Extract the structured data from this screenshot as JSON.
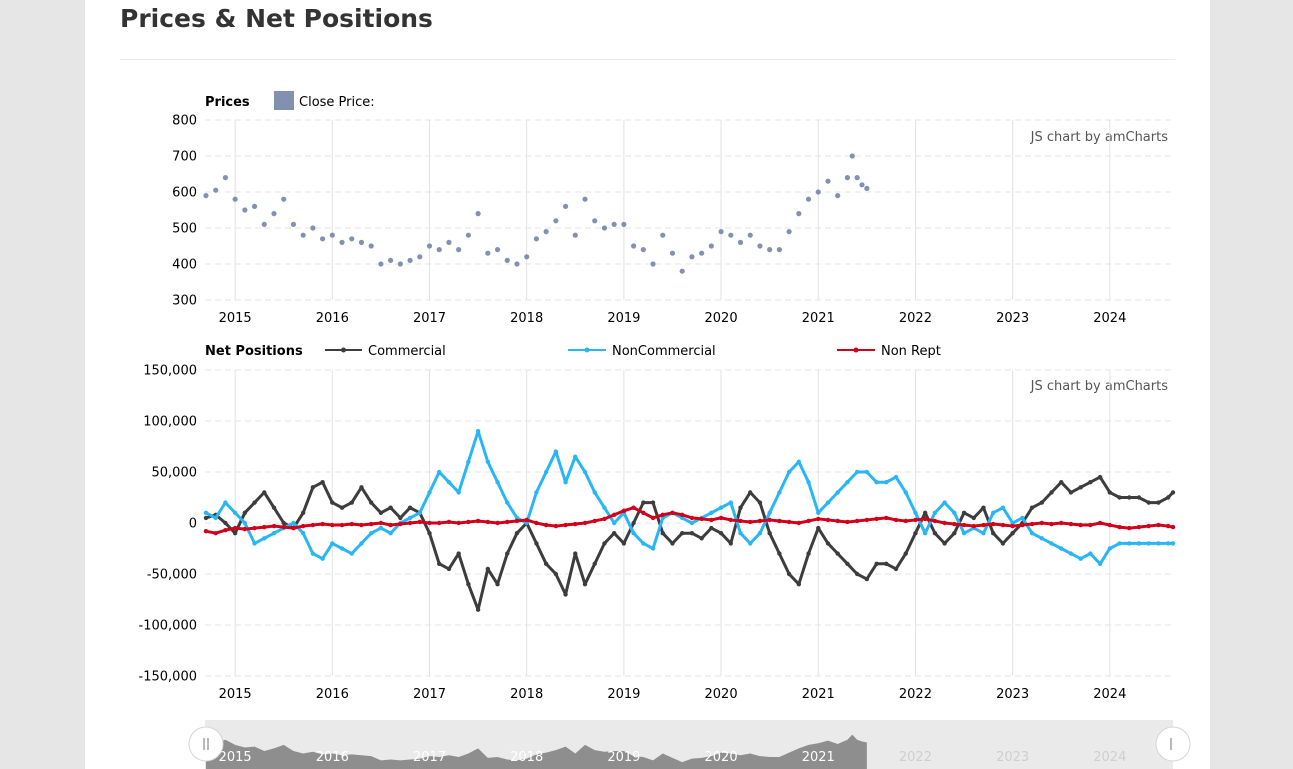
{
  "page": {
    "title": "Prices & Net Positions"
  },
  "charts": {
    "credit": "JS chart by amCharts"
  },
  "chart_data": [
    {
      "type": "scatter",
      "id": "prices",
      "legend_title": "Prices",
      "legend_position": "top-left",
      "series": [
        {
          "name": "Close Price:",
          "color": "#8391b0",
          "x": [
            2014.7,
            2014.8,
            2014.9,
            2015.0,
            2015.1,
            2015.2,
            2015.3,
            2015.4,
            2015.5,
            2015.6,
            2015.7,
            2015.8,
            2015.9,
            2016.0,
            2016.1,
            2016.2,
            2016.3,
            2016.4,
            2016.5,
            2016.6,
            2016.7,
            2016.8,
            2016.9,
            2017.0,
            2017.1,
            2017.2,
            2017.3,
            2017.4,
            2017.5,
            2017.6,
            2017.7,
            2017.8,
            2017.9,
            2018.0,
            2018.1,
            2018.2,
            2018.3,
            2018.4,
            2018.5,
            2018.6,
            2018.7,
            2018.8,
            2018.9,
            2019.0,
            2019.1,
            2019.2,
            2019.3,
            2019.4,
            2019.5,
            2019.6,
            2019.7,
            2019.8,
            2019.9,
            2020.0,
            2020.1,
            2020.2,
            2020.3,
            2020.4,
            2020.5,
            2020.6,
            2020.7,
            2020.8,
            2020.9,
            2021.0,
            2021.1,
            2021.2,
            2021.3,
            2021.35,
            2021.4,
            2021.45,
            2021.5
          ],
          "y": [
            590,
            605,
            640,
            580,
            550,
            560,
            510,
            540,
            580,
            510,
            480,
            500,
            470,
            480,
            460,
            470,
            460,
            450,
            400,
            410,
            400,
            410,
            420,
            450,
            440,
            460,
            440,
            480,
            540,
            430,
            440,
            410,
            400,
            420,
            470,
            490,
            520,
            560,
            480,
            580,
            520,
            500,
            510,
            510,
            450,
            440,
            400,
            480,
            430,
            380,
            420,
            430,
            450,
            490,
            480,
            460,
            480,
            450,
            440,
            440,
            490,
            540,
            580,
            600,
            630,
            590,
            640,
            700,
            640,
            620,
            610
          ]
        }
      ],
      "xlim": [
        2014.69,
        2024.65
      ],
      "ylim": [
        300,
        800
      ],
      "xticks": [
        "2015",
        "2016",
        "2017",
        "2018",
        "2019",
        "2020",
        "2021",
        "2022",
        "2023",
        "2024"
      ],
      "yticks": [
        "800",
        "700",
        "600",
        "500",
        "400",
        "300"
      ],
      "grid": true
    },
    {
      "type": "line",
      "id": "net-positions",
      "legend_title": "Net Positions",
      "legend_position": "top",
      "x": [
        2014.7,
        2014.8,
        2014.9,
        2015.0,
        2015.1,
        2015.2,
        2015.3,
        2015.4,
        2015.5,
        2015.6,
        2015.7,
        2015.8,
        2015.9,
        2016.0,
        2016.1,
        2016.2,
        2016.3,
        2016.4,
        2016.5,
        2016.6,
        2016.7,
        2016.8,
        2016.9,
        2017.0,
        2017.1,
        2017.2,
        2017.3,
        2017.4,
        2017.5,
        2017.6,
        2017.7,
        2017.8,
        2017.9,
        2018.0,
        2018.1,
        2018.2,
        2018.3,
        2018.4,
        2018.5,
        2018.6,
        2018.7,
        2018.8,
        2018.9,
        2019.0,
        2019.1,
        2019.2,
        2019.3,
        2019.4,
        2019.5,
        2019.6,
        2019.7,
        2019.8,
        2019.9,
        2020.0,
        2020.1,
        2020.2,
        2020.3,
        2020.4,
        2020.5,
        2020.6,
        2020.7,
        2020.8,
        2020.9,
        2021.0,
        2021.1,
        2021.2,
        2021.3,
        2021.4,
        2021.5,
        2021.6,
        2021.7,
        2021.8,
        2021.9,
        2022.0,
        2022.1,
        2022.2,
        2022.3,
        2022.4,
        2022.5,
        2022.6,
        2022.7,
        2022.8,
        2022.9,
        2023.0,
        2023.1,
        2023.2,
        2023.3,
        2023.4,
        2023.5,
        2023.6,
        2023.7,
        2023.8,
        2023.9,
        2024.0,
        2024.1,
        2024.2,
        2024.3,
        2024.4,
        2024.5,
        2024.6,
        2024.65
      ],
      "series": [
        {
          "name": "Commercial",
          "color": "#3d3d3d",
          "values": [
            5000,
            8000,
            0,
            -10000,
            10000,
            20000,
            30000,
            15000,
            0,
            -5000,
            10000,
            35000,
            40000,
            20000,
            15000,
            20000,
            35000,
            20000,
            10000,
            15000,
            5000,
            15000,
            10000,
            -10000,
            -40000,
            -45000,
            -30000,
            -60000,
            -85000,
            -45000,
            -60000,
            -30000,
            -10000,
            0,
            -20000,
            -40000,
            -50000,
            -70000,
            -30000,
            -60000,
            -40000,
            -20000,
            -10000,
            -20000,
            0,
            20000,
            20000,
            -10000,
            -20000,
            -10000,
            -10000,
            -15000,
            -5000,
            -10000,
            -20000,
            15000,
            30000,
            20000,
            -10000,
            -30000,
            -50000,
            -60000,
            -30000,
            -5000,
            -20000,
            -30000,
            -40000,
            -50000,
            -55000,
            -40000,
            -40000,
            -45000,
            -30000,
            -10000,
            10000,
            -10000,
            -20000,
            -10000,
            10000,
            5000,
            15000,
            -10000,
            -20000,
            -10000,
            0,
            15000,
            20000,
            30000,
            40000,
            30000,
            35000,
            40000,
            45000,
            30000,
            25000,
            25000,
            25000,
            20000,
            20000,
            25000,
            30000
          ]
        },
        {
          "name": "NonCommercial",
          "color": "#29b6f6",
          "values": [
            10000,
            5000,
            20000,
            10000,
            0,
            -20000,
            -15000,
            -10000,
            -5000,
            0,
            -10000,
            -30000,
            -35000,
            -20000,
            -25000,
            -30000,
            -20000,
            -10000,
            -5000,
            -10000,
            0,
            5000,
            10000,
            30000,
            50000,
            40000,
            30000,
            60000,
            90000,
            60000,
            40000,
            20000,
            5000,
            0,
            30000,
            50000,
            70000,
            40000,
            65000,
            50000,
            30000,
            15000,
            0,
            10000,
            -10000,
            -20000,
            -25000,
            5000,
            10000,
            5000,
            0,
            5000,
            10000,
            15000,
            20000,
            -10000,
            -20000,
            -10000,
            10000,
            30000,
            50000,
            60000,
            40000,
            10000,
            20000,
            30000,
            40000,
            50000,
            50000,
            40000,
            40000,
            45000,
            30000,
            10000,
            -10000,
            10000,
            20000,
            10000,
            -10000,
            -5000,
            -10000,
            10000,
            15000,
            0,
            5000,
            -10000,
            -15000,
            -20000,
            -25000,
            -30000,
            -35000,
            -30000,
            -40000,
            -25000,
            -20000,
            -20000,
            -20000,
            -20000,
            -20000,
            -20000,
            -20000
          ]
        },
        {
          "name": "Non Rept",
          "color": "#d0021b",
          "values": [
            -8000,
            -10000,
            -7000,
            -5000,
            -6000,
            -5000,
            -4000,
            -3000,
            -4000,
            -5000,
            -3000,
            -2000,
            -1000,
            -2000,
            -2000,
            -1000,
            -2000,
            -1000,
            0,
            -2000,
            -1000,
            0,
            1000,
            0,
            0,
            1000,
            0,
            1000,
            2000,
            1000,
            0,
            1000,
            2000,
            3000,
            0,
            -2000,
            -3000,
            -2000,
            -1000,
            0,
            2000,
            4000,
            8000,
            12000,
            15000,
            10000,
            5000,
            8000,
            10000,
            8000,
            5000,
            4000,
            3000,
            5000,
            3000,
            2000,
            1000,
            2000,
            3000,
            2000,
            1000,
            0,
            2000,
            4000,
            3000,
            2000,
            1000,
            2000,
            3000,
            4000,
            5000,
            3000,
            2000,
            3000,
            4000,
            2000,
            0,
            -1000,
            -2000,
            -3000,
            -2000,
            -1000,
            -2000,
            -3000,
            -2000,
            -1000,
            0,
            -1000,
            0,
            -1000,
            -2000,
            -2000,
            0,
            -2000,
            -4000,
            -5000,
            -4000,
            -3000,
            -2000,
            -3000,
            -4000
          ]
        }
      ],
      "xlim": [
        2014.69,
        2024.65
      ],
      "ylim": [
        -150000,
        150000
      ],
      "xticks": [
        "2015",
        "2016",
        "2017",
        "2018",
        "2019",
        "2020",
        "2021",
        "2022",
        "2023",
        "2024"
      ],
      "yticks": [
        "150,000",
        "100,000",
        "50,000",
        "0",
        "-50,000",
        "-100,000",
        "-150,000"
      ],
      "grid": true
    }
  ],
  "navigator": {
    "labels": [
      "2015",
      "2016",
      "2017",
      "2018",
      "2019",
      "2020",
      "2021",
      "2022",
      "2023",
      "2024"
    ],
    "selection_end_year": 2021.5
  }
}
